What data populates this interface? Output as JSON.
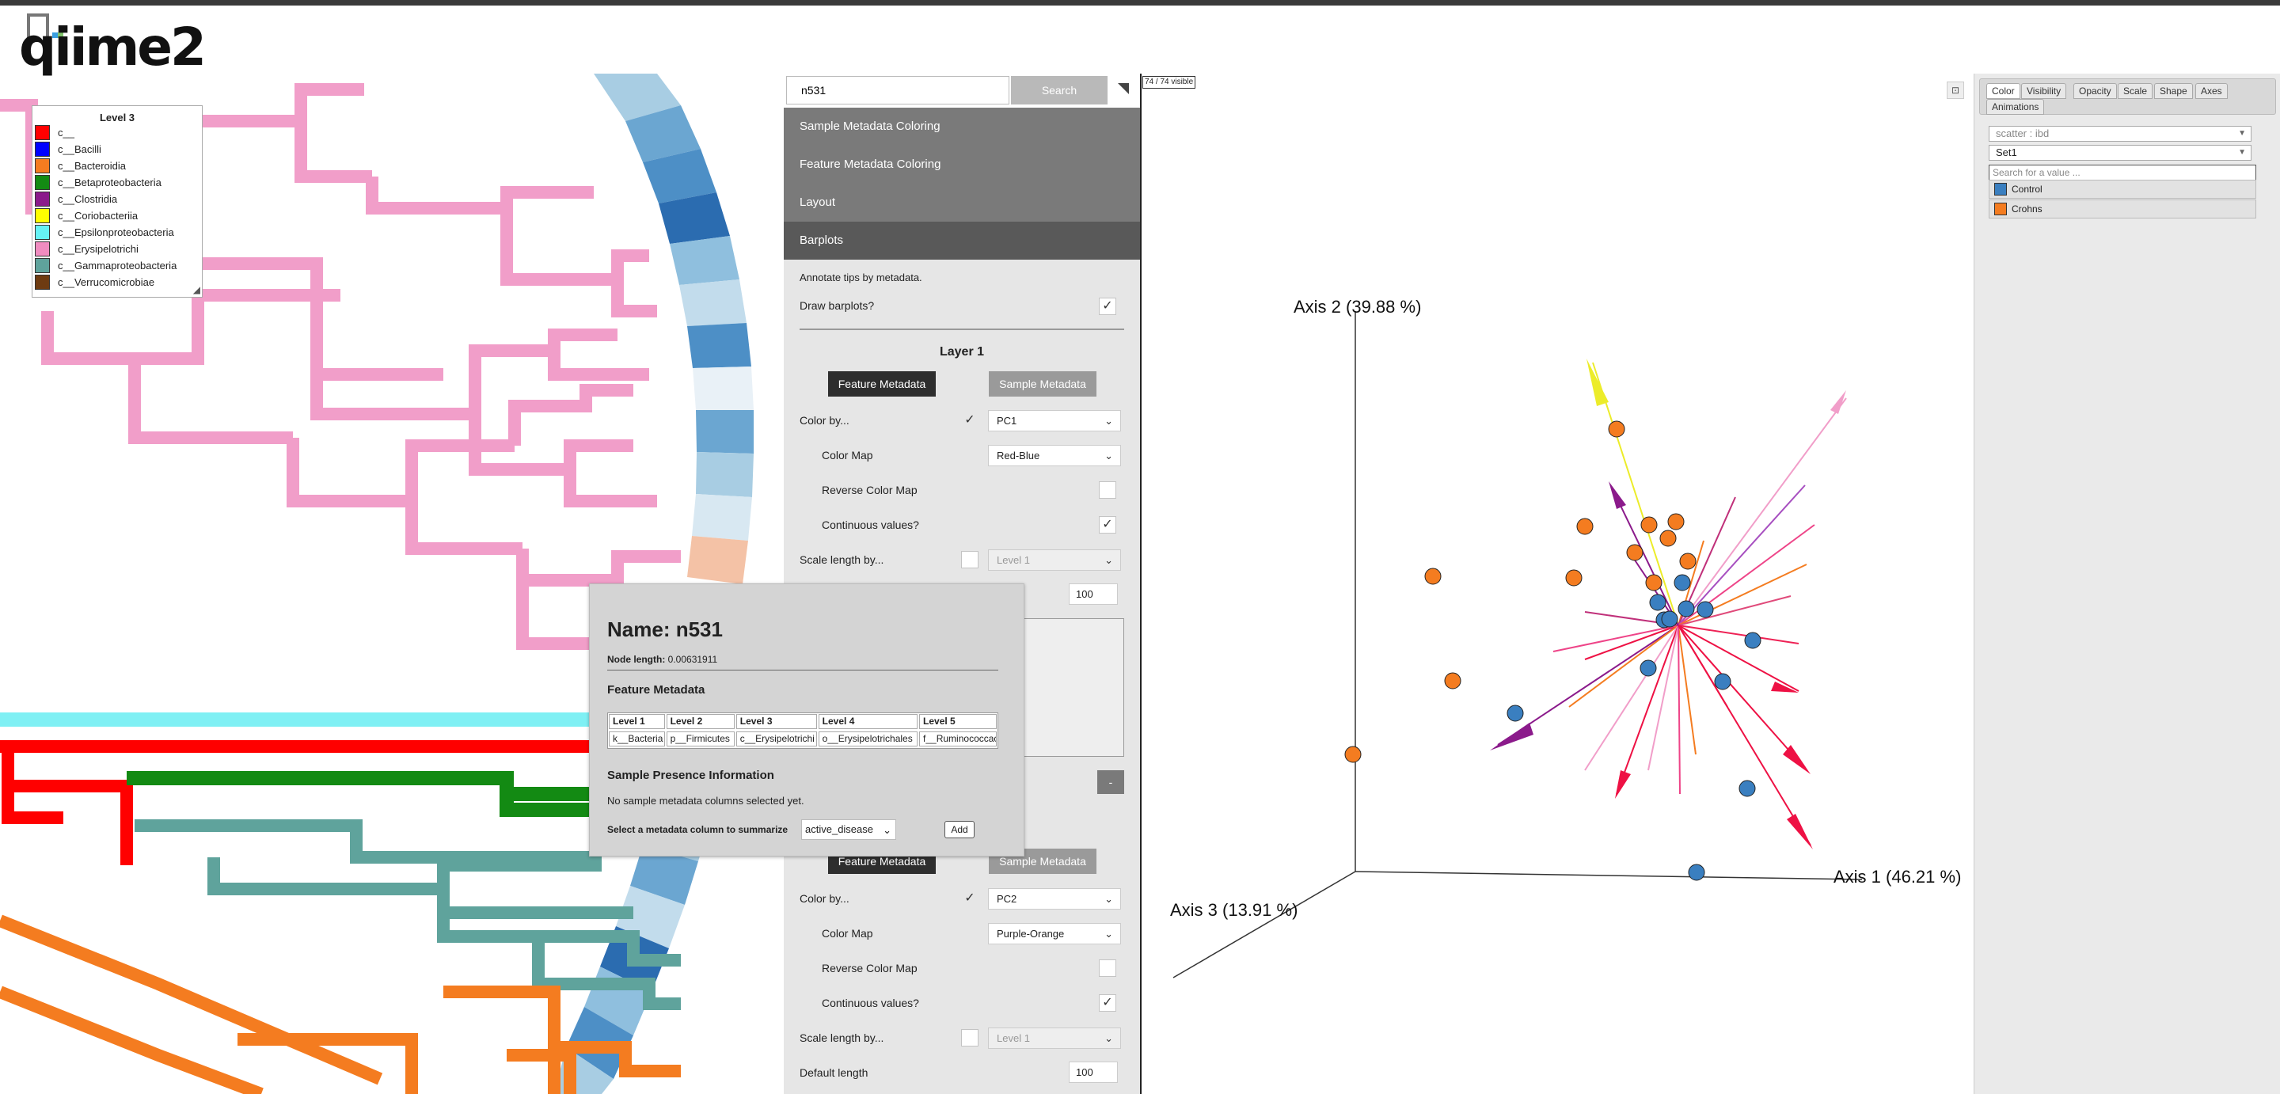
{
  "app": {
    "logo_text": "qiime2"
  },
  "legend": {
    "title": "Level 3",
    "items": [
      {
        "label": "c__",
        "color": "#ff0000"
      },
      {
        "label": "c__Bacilli",
        "color": "#0000ff"
      },
      {
        "label": "c__Bacteroidia",
        "color": "#f47c20"
      },
      {
        "label": "c__Betaproteobacteria",
        "color": "#138a13"
      },
      {
        "label": "c__Clostridia",
        "color": "#8b1a8b"
      },
      {
        "label": "c__Coriobacteriia",
        "color": "#ffff00"
      },
      {
        "label": "c__Epsilonproteobacteria",
        "color": "#66f2f5"
      },
      {
        "label": "c__Erysipelotrichi",
        "color": "#f08cc0"
      },
      {
        "label": "c__Gammaproteobacteria",
        "color": "#5fa39c"
      },
      {
        "label": "c__Verrucomicrobiae",
        "color": "#6e3b11"
      }
    ]
  },
  "panel": {
    "search_value": "n531",
    "search_button": "Search",
    "menus": [
      "Sample Metadata Coloring",
      "Feature Metadata Coloring",
      "Layout",
      "Barplots"
    ],
    "annotate_text": "Annotate tips by metadata.",
    "draw_barplots_label": "Draw barplots?",
    "check_mark": "✓",
    "layer1": {
      "title": "Layer 1",
      "feature_btn": "Feature Metadata",
      "sample_btn": "Sample Metadata",
      "color_by_label": "Color by...",
      "color_by_value": "PC1",
      "color_map_label": "Color Map",
      "color_map_value": "Red-Blue",
      "reverse_label": "Reverse Color Map",
      "continuous_label": "Continuous values?",
      "scale_label": "Scale length by...",
      "scale_value": "Level 1",
      "length_value": "100"
    },
    "minus_label": "-",
    "layer2": {
      "feature_btn": "Feature Metadata",
      "sample_btn": "Sample Metadata",
      "color_by_label": "Color by...",
      "color_by_value": "PC2",
      "color_map_label": "Color Map",
      "color_map_value": "Purple-Orange",
      "reverse_label": "Reverse Color Map",
      "continuous_label": "Continuous values?",
      "scale_label": "Scale length by...",
      "scale_value": "Level 1",
      "default_length_label": "Default length",
      "length_value": "100"
    }
  },
  "popup": {
    "name": "Name: n531",
    "node_length_label": "Node length:",
    "node_length_value": "0.00631911",
    "feature_metadata_title": "Feature Metadata",
    "columns": [
      "Level 1",
      "Level 2",
      "Level 3",
      "Level 4",
      "Level 5"
    ],
    "values": [
      "k__Bacteria",
      "p__Firmicutes",
      "c__Erysipelotrichi",
      "o__Erysipelotrichales",
      "f__Ruminococcaceae"
    ],
    "sample_presence_title": "Sample Presence Information",
    "no_sample_text": "No sample metadata columns selected yet.",
    "select_column_label": "Select a metadata column to summarize",
    "select_value": "active_disease",
    "add_button": "Add"
  },
  "emperor": {
    "visible_count": "74 / 74 visible",
    "axis1": "Axis 1 (46.21 %)",
    "axis2": "Axis 2 (39.88 %)",
    "axis3": "Axis 3 (13.91 %)",
    "tabs": [
      "Color",
      "Visibility",
      "Opacity",
      "Scale",
      "Shape",
      "Axes",
      "Animations"
    ],
    "scatter_select": "scatter : ibd",
    "palette_select": "Set1",
    "search_placeholder": "Search for a value ...",
    "categories": [
      {
        "label": "Control",
        "color": "#3a7fc0"
      },
      {
        "label": "Crohns",
        "color": "#f47c20"
      }
    ]
  }
}
